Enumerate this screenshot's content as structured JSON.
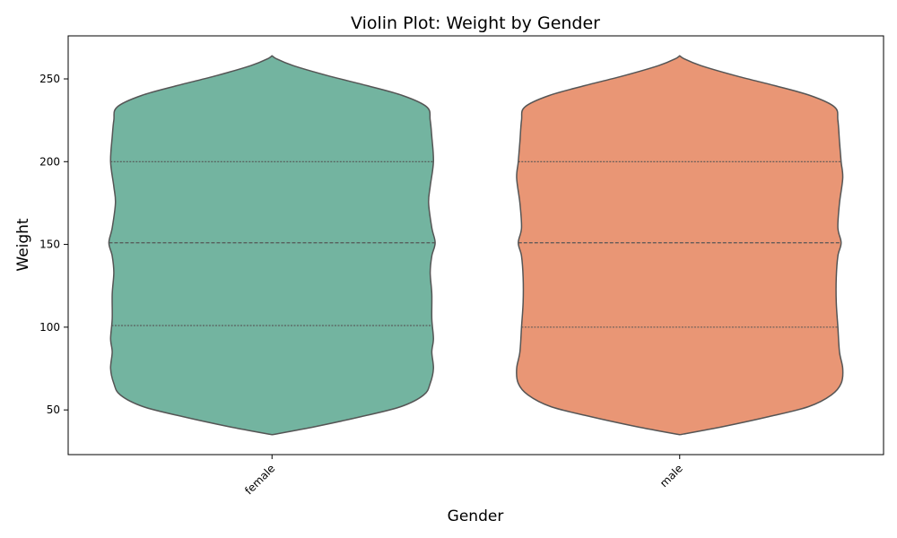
{
  "chart_data": {
    "type": "violin",
    "title": "Violin Plot: Weight by Gender",
    "xlabel": "Gender",
    "ylabel": "Weight",
    "ylim": [
      23,
      276
    ],
    "yticks": [
      50,
      100,
      150,
      200,
      250
    ],
    "categories": [
      "female",
      "male"
    ],
    "x_tick_rotation": 45,
    "inner": "quartile",
    "grid": false,
    "legend": "none",
    "colors": {
      "female": "#73b4a0",
      "male": "#e99675",
      "outline": "#555555"
    },
    "series": [
      {
        "category": "female",
        "min": 35,
        "max": 264,
        "quartiles": [
          101,
          151,
          200
        ],
        "density_profile": [
          [
            35,
            0.0
          ],
          [
            40,
            0.27
          ],
          [
            46,
            0.55
          ],
          [
            52,
            0.79
          ],
          [
            59,
            0.93
          ],
          [
            66,
            0.97
          ],
          [
            75,
            0.99
          ],
          [
            85,
            0.98
          ],
          [
            93,
            0.99
          ],
          [
            105,
            0.98
          ],
          [
            120,
            0.98
          ],
          [
            133,
            0.97
          ],
          [
            143,
            0.98
          ],
          [
            151,
            1.0
          ],
          [
            160,
            0.98
          ],
          [
            175,
            0.96
          ],
          [
            185,
            0.97
          ],
          [
            200,
            0.99
          ],
          [
            215,
            0.98
          ],
          [
            225,
            0.97
          ],
          [
            233,
            0.95
          ],
          [
            240,
            0.8
          ],
          [
            246,
            0.58
          ],
          [
            252,
            0.34
          ],
          [
            258,
            0.13
          ],
          [
            262,
            0.03
          ],
          [
            264,
            0.0
          ]
        ]
      },
      {
        "category": "male",
        "min": 35,
        "max": 264,
        "quartiles": [
          100,
          151,
          200
        ],
        "density_profile": [
          [
            35,
            0.0
          ],
          [
            40,
            0.27
          ],
          [
            46,
            0.55
          ],
          [
            52,
            0.79
          ],
          [
            59,
            0.93
          ],
          [
            66,
            0.99
          ],
          [
            75,
            1.0
          ],
          [
            85,
            0.98
          ],
          [
            100,
            0.97
          ],
          [
            115,
            0.96
          ],
          [
            130,
            0.96
          ],
          [
            143,
            0.97
          ],
          [
            151,
            0.99
          ],
          [
            160,
            0.97
          ],
          [
            175,
            0.98
          ],
          [
            190,
            1.0
          ],
          [
            200,
            0.99
          ],
          [
            212,
            0.98
          ],
          [
            225,
            0.97
          ],
          [
            233,
            0.95
          ],
          [
            240,
            0.8
          ],
          [
            246,
            0.58
          ],
          [
            252,
            0.34
          ],
          [
            258,
            0.13
          ],
          [
            262,
            0.03
          ],
          [
            264,
            0.0
          ]
        ]
      }
    ]
  }
}
